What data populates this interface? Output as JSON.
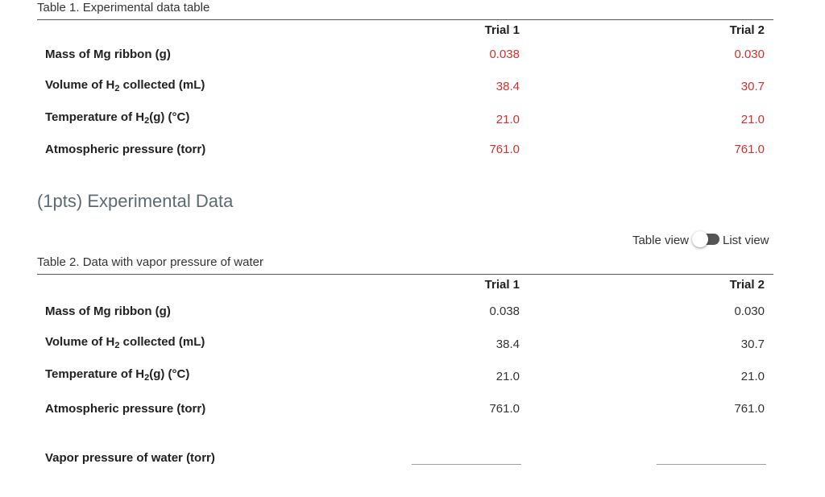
{
  "table1": {
    "caption": "Table 1. Experimental data table",
    "col1": "Trial 1",
    "col2": "Trial 2",
    "rows": [
      {
        "pre": "Mass of Mg ribbon (g)",
        "sub": "",
        "post": "",
        "t1": "0.038",
        "t2": "0.030"
      },
      {
        "pre": "Volume of H",
        "sub": "2",
        "post": " collected (mL)",
        "t1": "38.4",
        "t2": "30.7"
      },
      {
        "pre": "Temperature of H",
        "sub": "2",
        "post": "(g) (°C)",
        "t1": "21.0",
        "t2": "21.0"
      },
      {
        "pre": "Atmospheric pressure (torr)",
        "sub": "",
        "post": "",
        "t1": "761.0",
        "t2": "761.0"
      }
    ]
  },
  "section_title": "(1pts) Experimental Data",
  "view_toggle": {
    "left_label": "Table view",
    "right_label": "List view",
    "state": "list"
  },
  "table2": {
    "caption": "Table 2. Data with vapor pressure of water",
    "col1": "Trial 1",
    "col2": "Trial 2",
    "rows": [
      {
        "pre": "Mass of Mg ribbon (g)",
        "sub": "",
        "post": "",
        "t1": "0.038",
        "t2": "0.030"
      },
      {
        "pre": "Volume of H",
        "sub": "2",
        "post": " collected (mL)",
        "t1": "38.4",
        "t2": "30.7"
      },
      {
        "pre": "Temperature of H",
        "sub": "2",
        "post": "(g) (°C)",
        "t1": "21.0",
        "t2": "21.0"
      },
      {
        "pre": "Atmospheric pressure (torr)",
        "sub": "",
        "post": "",
        "t1": "761.0",
        "t2": "761.0"
      }
    ],
    "vapor_label": "Vapor pressure of water (torr)",
    "vapor_t1": "",
    "vapor_t2": ""
  },
  "colors": {
    "value_red": "#d32f2f",
    "title_gray": "#5b6b74"
  }
}
